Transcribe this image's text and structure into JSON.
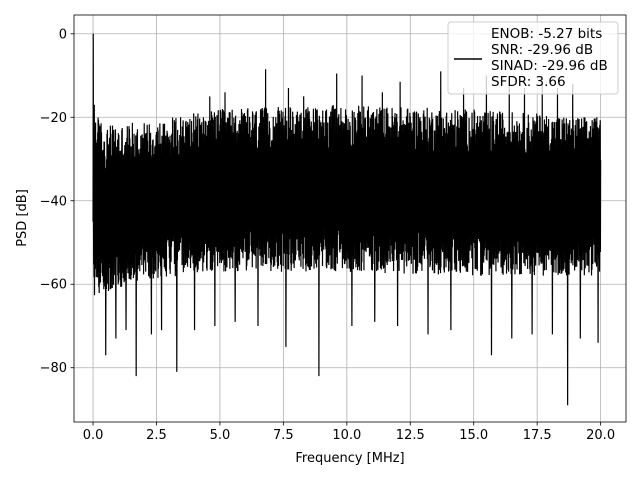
{
  "chart_data": {
    "type": "line",
    "title": "",
    "xlabel": "Frequency [MHz]",
    "ylabel": "PSD [dB]",
    "xlim": [
      -0.75,
      21.0
    ],
    "ylim": [
      -93,
      4.5
    ],
    "xticks": [
      0.0,
      2.5,
      5.0,
      7.5,
      10.0,
      12.5,
      15.0,
      17.5,
      20.0
    ],
    "xtick_labels": [
      "0.0",
      "2.5",
      "5.0",
      "7.5",
      "10.0",
      "12.5",
      "15.0",
      "17.5",
      "20.0"
    ],
    "yticks": [
      0,
      -20,
      -40,
      -60,
      -80
    ],
    "ytick_labels": [
      "0",
      "−20",
      "−40",
      "−60",
      "−80"
    ],
    "grid": true,
    "legend": {
      "placement": "top-right",
      "lines": [
        "ENOB: -5.27 bits",
        "SNR: -29.96 dB",
        "SINAD: -29.96 dB",
        "SFDR: 3.66"
      ]
    },
    "series": [
      {
        "color": "#000000",
        "x_range": [
          0.0,
          20.0
        ],
        "peak": {
          "x": 0.0,
          "y": 0.0
        },
        "noise_band_upper": [
          [
            0.0,
            -18
          ],
          [
            0.5,
            -22
          ],
          [
            2.0,
            -21
          ],
          [
            5.0,
            -18
          ],
          [
            10.0,
            -17
          ],
          [
            15.0,
            -18
          ],
          [
            20.0,
            -20
          ]
        ],
        "noise_band_lower": [
          [
            0.0,
            -63
          ],
          [
            0.5,
            -62
          ],
          [
            2.0,
            -59
          ],
          [
            5.0,
            -57
          ],
          [
            10.0,
            -57
          ],
          [
            15.0,
            -58
          ],
          [
            20.0,
            -58
          ]
        ],
        "spurs_high": [
          [
            0.05,
            -17
          ],
          [
            4.6,
            -15
          ],
          [
            5.2,
            -14
          ],
          [
            6.8,
            -8.5
          ],
          [
            7.7,
            -13
          ],
          [
            8.3,
            -15
          ],
          [
            9.6,
            -9.5
          ],
          [
            10.6,
            -10
          ],
          [
            11.4,
            -14
          ],
          [
            12.1,
            -11.5
          ],
          [
            13.7,
            -9
          ],
          [
            14.6,
            -13
          ],
          [
            15.5,
            -10
          ],
          [
            16.4,
            -12
          ],
          [
            17.0,
            -13
          ],
          [
            17.7,
            -12
          ],
          [
            18.3,
            -13
          ],
          [
            18.9,
            -12
          ]
        ],
        "spurs_low": [
          [
            0.5,
            -77
          ],
          [
            0.9,
            -73
          ],
          [
            1.3,
            -71
          ],
          [
            1.7,
            -82
          ],
          [
            2.3,
            -72
          ],
          [
            2.7,
            -71
          ],
          [
            3.3,
            -81
          ],
          [
            4.0,
            -71
          ],
          [
            4.8,
            -70
          ],
          [
            5.6,
            -69
          ],
          [
            6.5,
            -70
          ],
          [
            7.6,
            -75
          ],
          [
            8.9,
            -82
          ],
          [
            10.2,
            -70
          ],
          [
            11.1,
            -69
          ],
          [
            12.0,
            -70
          ],
          [
            13.2,
            -72
          ],
          [
            14.1,
            -71
          ],
          [
            15.7,
            -77
          ],
          [
            16.5,
            -73
          ],
          [
            17.3,
            -72
          ],
          [
            18.1,
            -72
          ],
          [
            18.7,
            -89
          ],
          [
            19.2,
            -73
          ],
          [
            19.9,
            -74
          ]
        ]
      }
    ]
  }
}
